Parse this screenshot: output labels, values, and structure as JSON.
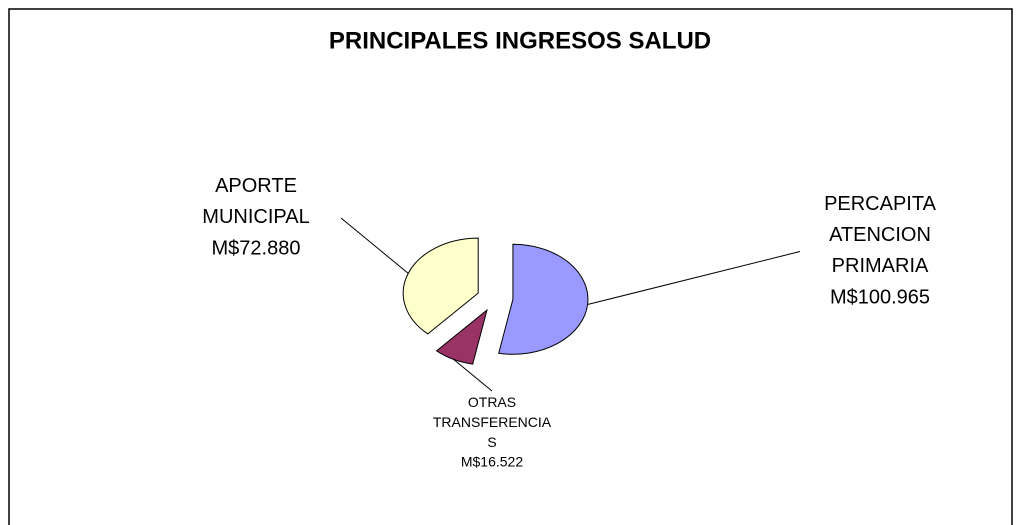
{
  "chart_data": {
    "type": "pie",
    "title": "PRINCIPALES INGRESOS SALUD",
    "categories": [
      "PERCAPITA ATENCION PRIMARIA",
      "OTRAS TRANSFERENCIAS",
      "APORTE MUNICIPAL"
    ],
    "values": [
      100965,
      16522,
      72880
    ],
    "value_labels": [
      "M$100.965",
      "M$16.522",
      "M$72.880"
    ],
    "colors": [
      "#9999ff",
      "#993366",
      "#ffffcc"
    ]
  }
}
